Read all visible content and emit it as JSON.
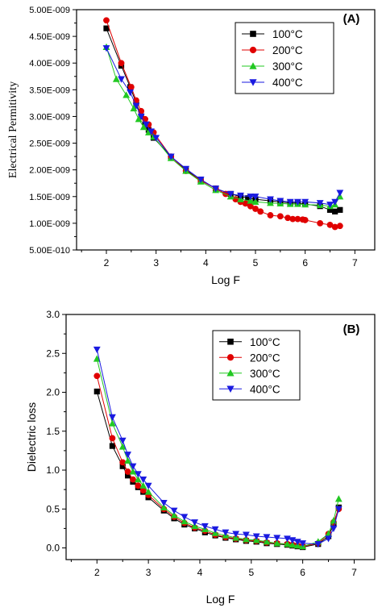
{
  "chart_data": [
    {
      "type": "line",
      "panel_label": "(A)",
      "xlabel": "Log F",
      "ylabel": "Electrical Permitivity",
      "xlim": [
        1.4,
        7.4
      ],
      "ylim": [
        5e-10,
        5e-09
      ],
      "xticks": [
        "2",
        "3",
        "4",
        "5",
        "6",
        "7"
      ],
      "yticks": [
        "5.00E-010",
        "1.00E-009",
        "1.50E-009",
        "2.00E-009",
        "2.50E-009",
        "3.00E-009",
        "3.50E-009",
        "4.00E-009",
        "4.50E-009",
        "5.00E-009"
      ],
      "legend_position": "top-right",
      "series": [
        {
          "name": "100°C",
          "color": "#000000",
          "marker": "square",
          "x": [
            2.0,
            2.3,
            2.48,
            2.6,
            2.7,
            2.78,
            2.85,
            2.95,
            3.3,
            3.6,
            3.9,
            4.2,
            4.5,
            4.7,
            4.85,
            5.0,
            5.3,
            5.5,
            5.7,
            5.85,
            6.0,
            6.3,
            6.5,
            6.6,
            6.7
          ],
          "y": [
            4.65e-09,
            3.95e-09,
            3.55e-09,
            3.25e-09,
            3e-09,
            2.85e-09,
            2.75e-09,
            2.6e-09,
            2.25e-09,
            2e-09,
            1.8e-09,
            1.65e-09,
            1.55e-09,
            1.5e-09,
            1.47e-09,
            1.45e-09,
            1.42e-09,
            1.4e-09,
            1.38e-09,
            1.38e-09,
            1.36e-09,
            1.32e-09,
            1.25e-09,
            1.22e-09,
            1.25e-09
          ]
        },
        {
          "name": "200°C",
          "color": "#e00000",
          "marker": "circle",
          "x": [
            2.0,
            2.3,
            2.5,
            2.6,
            2.7,
            2.78,
            2.85,
            2.95,
            3.3,
            3.6,
            3.9,
            4.2,
            4.4,
            4.6,
            4.7,
            4.8,
            4.9,
            5.0,
            5.1,
            5.3,
            5.5,
            5.65,
            5.75,
            5.85,
            5.95,
            6.0,
            6.3,
            6.5,
            6.6,
            6.7
          ],
          "y": [
            4.8e-09,
            4e-09,
            3.55e-09,
            3.3e-09,
            3.1e-09,
            2.95e-09,
            2.85e-09,
            2.7e-09,
            2.25e-09,
            1.98e-09,
            1.8e-09,
            1.65e-09,
            1.55e-09,
            1.45e-09,
            1.4e-09,
            1.37e-09,
            1.32e-09,
            1.27e-09,
            1.22e-09,
            1.15e-09,
            1.13e-09,
            1.1e-09,
            1.08e-09,
            1.08e-09,
            1.07e-09,
            1.06e-09,
            1e-09,
            9.7e-10,
            9.3e-10,
            9.5e-10
          ]
        },
        {
          "name": "300°C",
          "color": "#22c822",
          "marker": "triangle-up",
          "x": [
            2.0,
            2.2,
            2.4,
            2.55,
            2.65,
            2.75,
            2.85,
            2.95,
            3.3,
            3.6,
            3.9,
            4.2,
            4.5,
            4.7,
            4.9,
            5.0,
            5.3,
            5.5,
            5.7,
            5.85,
            6.0,
            6.3,
            6.5,
            6.6,
            6.7
          ],
          "y": [
            4.3e-09,
            3.7e-09,
            3.4e-09,
            3.15e-09,
            2.95e-09,
            2.8e-09,
            2.7e-09,
            2.62e-09,
            2.22e-09,
            1.98e-09,
            1.78e-09,
            1.62e-09,
            1.5e-09,
            1.45e-09,
            1.42e-09,
            1.4e-09,
            1.38e-09,
            1.37e-09,
            1.36e-09,
            1.36e-09,
            1.35e-09,
            1.34e-09,
            1.32e-09,
            1.35e-09,
            1.5e-09
          ]
        },
        {
          "name": "400°C",
          "color": "#1a1ae0",
          "marker": "triangle-down",
          "x": [
            2.0,
            2.3,
            2.48,
            2.6,
            2.7,
            2.8,
            2.9,
            3.0,
            3.3,
            3.6,
            3.9,
            4.2,
            4.5,
            4.7,
            4.9,
            5.0,
            5.3,
            5.5,
            5.7,
            5.85,
            6.0,
            6.3,
            6.5,
            6.6,
            6.7
          ],
          "y": [
            4.28e-09,
            3.7e-09,
            3.45e-09,
            3.2e-09,
            3e-09,
            2.85e-09,
            2.72e-09,
            2.6e-09,
            2.25e-09,
            2.02e-09,
            1.82e-09,
            1.65e-09,
            1.55e-09,
            1.52e-09,
            1.5e-09,
            1.5e-09,
            1.45e-09,
            1.42e-09,
            1.4e-09,
            1.4e-09,
            1.4e-09,
            1.38e-09,
            1.35e-09,
            1.4e-09,
            1.57e-09
          ]
        }
      ]
    },
    {
      "type": "line",
      "panel_label": "(B)",
      "xlabel": "Log F",
      "ylabel": "Dielectric loss",
      "xlim": [
        1.4,
        7.4
      ],
      "ylim": [
        -0.15,
        3.0
      ],
      "xticks": [
        "2",
        "3",
        "4",
        "5",
        "6",
        "7"
      ],
      "yticks": [
        "0.0",
        "0.5",
        "1.0",
        "1.5",
        "2.0",
        "2.5",
        "3.0"
      ],
      "legend_position": "top-center",
      "series": [
        {
          "name": "100°C",
          "color": "#000000",
          "marker": "square",
          "x": [
            2.0,
            2.3,
            2.5,
            2.6,
            2.7,
            2.8,
            2.9,
            3.0,
            3.3,
            3.5,
            3.7,
            3.9,
            4.1,
            4.3,
            4.5,
            4.7,
            4.9,
            5.1,
            5.3,
            5.5,
            5.7,
            5.8,
            5.9,
            6.0,
            6.3,
            6.5,
            6.6,
            6.7
          ],
          "y": [
            2.01,
            1.31,
            1.05,
            0.93,
            0.85,
            0.78,
            0.72,
            0.65,
            0.48,
            0.38,
            0.3,
            0.25,
            0.2,
            0.16,
            0.13,
            0.11,
            0.09,
            0.08,
            0.06,
            0.05,
            0.04,
            0.03,
            0.02,
            0.01,
            0.05,
            0.15,
            0.3,
            0.52
          ]
        },
        {
          "name": "200°C",
          "color": "#e00000",
          "marker": "circle",
          "x": [
            2.0,
            2.3,
            2.5,
            2.6,
            2.7,
            2.8,
            2.9,
            3.0,
            3.3,
            3.5,
            3.7,
            3.9,
            4.1,
            4.3,
            4.5,
            4.7,
            4.9,
            5.1,
            5.3,
            5.5,
            5.7,
            5.8,
            5.9,
            6.0,
            6.3,
            6.5,
            6.6,
            6.7
          ],
          "y": [
            2.21,
            1.41,
            1.1,
            0.98,
            0.88,
            0.8,
            0.74,
            0.68,
            0.5,
            0.4,
            0.32,
            0.26,
            0.22,
            0.17,
            0.14,
            0.12,
            0.1,
            0.09,
            0.07,
            0.06,
            0.05,
            0.04,
            0.03,
            0.02,
            0.06,
            0.18,
            0.33,
            0.5
          ]
        },
        {
          "name": "300°C",
          "color": "#22c822",
          "marker": "triangle-up",
          "x": [
            2.0,
            2.3,
            2.5,
            2.6,
            2.7,
            2.8,
            2.9,
            3.0,
            3.3,
            3.5,
            3.7,
            3.9,
            4.1,
            4.3,
            4.5,
            4.7,
            4.9,
            5.1,
            5.3,
            5.5,
            5.7,
            5.8,
            5.9,
            6.0,
            6.3,
            6.5,
            6.6,
            6.7
          ],
          "y": [
            2.43,
            1.6,
            1.3,
            1.12,
            0.98,
            0.88,
            0.8,
            0.72,
            0.52,
            0.42,
            0.34,
            0.28,
            0.24,
            0.19,
            0.16,
            0.13,
            0.11,
            0.1,
            0.08,
            0.06,
            0.05,
            0.04,
            0.03,
            0.02,
            0.08,
            0.18,
            0.35,
            0.63
          ]
        },
        {
          "name": "400°C",
          "color": "#1a1ae0",
          "marker": "triangle-down",
          "x": [
            2.0,
            2.3,
            2.5,
            2.6,
            2.7,
            2.8,
            2.9,
            3.0,
            3.3,
            3.5,
            3.7,
            3.9,
            4.1,
            4.3,
            4.5,
            4.7,
            4.9,
            5.1,
            5.3,
            5.5,
            5.7,
            5.8,
            5.9,
            6.0,
            6.3,
            6.5,
            6.6,
            6.7
          ],
          "y": [
            2.55,
            1.68,
            1.38,
            1.2,
            1.05,
            0.95,
            0.88,
            0.8,
            0.58,
            0.48,
            0.4,
            0.33,
            0.28,
            0.24,
            0.2,
            0.18,
            0.17,
            0.15,
            0.14,
            0.13,
            0.12,
            0.1,
            0.08,
            0.06,
            0.05,
            0.12,
            0.25,
            0.5
          ]
        }
      ]
    }
  ]
}
